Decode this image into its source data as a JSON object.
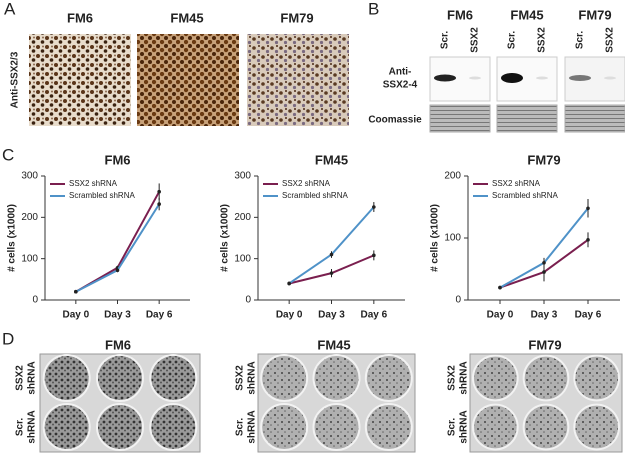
{
  "panel_labels": [
    "A",
    "B",
    "C",
    "D"
  ],
  "panel_a": {
    "titles": [
      "FM6",
      "FM45",
      "FM79"
    ],
    "ylabel": "Anti-SSX2/3"
  },
  "panel_b": {
    "blots": [
      {
        "title": "FM6",
        "lanes": [
          "Scr.",
          "SSX2"
        ]
      },
      {
        "title": "FM45",
        "lanes": [
          "Scr.",
          "SSX2"
        ]
      },
      {
        "title": "FM79",
        "lanes": [
          "Scr.",
          "SSX2"
        ]
      }
    ],
    "row_labels": [
      [
        "Anti-",
        "SSX2-4"
      ],
      [
        "Coomassie"
      ]
    ]
  },
  "chart_data": [
    {
      "type": "line",
      "title": "FM6",
      "ylabel": "# cells (x1000)",
      "categories": [
        "Day 0",
        "Day 3",
        "Day 6"
      ],
      "series": [
        {
          "name": "SSX2 shRNA",
          "color": "#7a1f4f",
          "values": [
            20,
            78,
            262
          ],
          "errors": [
            0,
            5,
            20
          ]
        },
        {
          "name": "Scrambled shRNA",
          "color": "#4f92c8",
          "values": [
            20,
            72,
            232
          ],
          "errors": [
            0,
            5,
            15
          ]
        }
      ],
      "ylim": [
        0,
        300
      ],
      "yticks": [
        0,
        100,
        200,
        300
      ],
      "legend": "upper left"
    },
    {
      "type": "line",
      "title": "FM45",
      "ylabel": "# cells (x1000)",
      "categories": [
        "Day 0",
        "Day 3",
        "Day 6"
      ],
      "series": [
        {
          "name": "SSX2 shRNA",
          "color": "#7a1f4f",
          "values": [
            40,
            65,
            108
          ],
          "errors": [
            0,
            10,
            12
          ]
        },
        {
          "name": "Scrambled shRNA",
          "color": "#4f92c8",
          "values": [
            40,
            110,
            225
          ],
          "errors": [
            0,
            8,
            12
          ]
        }
      ],
      "ylim": [
        0,
        300
      ],
      "yticks": [
        0,
        100,
        200,
        300
      ],
      "legend": "upper left"
    },
    {
      "type": "line",
      "title": "FM79",
      "ylabel": "# cells (x1000)",
      "categories": [
        "Day 0",
        "Day 3",
        "Day 6"
      ],
      "series": [
        {
          "name": "SSX2 shRNA",
          "color": "#7a1f4f",
          "values": [
            20,
            45,
            97
          ],
          "errors": [
            0,
            15,
            12
          ]
        },
        {
          "name": "Scrambled shRNA",
          "color": "#4f92c8",
          "values": [
            20,
            60,
            148
          ],
          "errors": [
            0,
            8,
            15
          ]
        }
      ],
      "ylim": [
        0,
        200
      ],
      "yticks": [
        0,
        100,
        200
      ],
      "legend": "upper left"
    }
  ],
  "panel_d": {
    "titles": [
      "FM6",
      "FM45",
      "FM79"
    ],
    "row_labels": [
      [
        "SSX2",
        "shRNA"
      ],
      [
        "Scr.",
        "shRNA"
      ]
    ]
  }
}
